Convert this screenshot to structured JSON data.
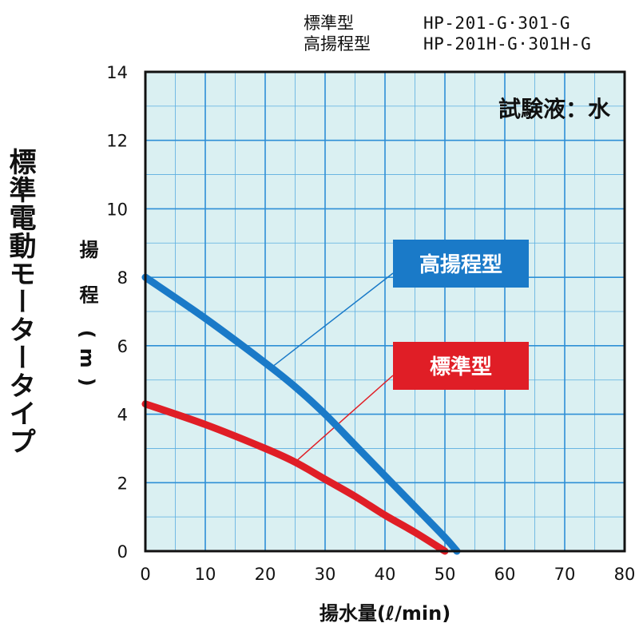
{
  "models": [
    {
      "type": "標準型",
      "codes": "HP-201-G·301-G"
    },
    {
      "type": "高揚程型",
      "codes": "HP-201H-G·301H-G"
    }
  ],
  "side_title": "標準電動モータータイプ",
  "chart_data": {
    "type": "line",
    "title": "",
    "fluid_note": "試験液：水",
    "ylabel": "揚 程 (m)",
    "xlabel": "揚水量(ℓ/min)",
    "xlim": [
      0,
      80
    ],
    "ylim": [
      0,
      14
    ],
    "x_ticks": [
      0,
      10,
      20,
      30,
      40,
      50,
      60,
      70,
      80
    ],
    "y_ticks": [
      0,
      2,
      4,
      6,
      8,
      10,
      12,
      14
    ],
    "x_minor_step": 5,
    "y_minor_step": 1,
    "grid": true,
    "series": [
      {
        "name": "高揚程型",
        "color": "#1a7ac8",
        "x": [
          0,
          10,
          20,
          25,
          30,
          35,
          40,
          45,
          50,
          52
        ],
        "y": [
          8.0,
          6.8,
          5.5,
          4.8,
          4.0,
          3.1,
          2.2,
          1.3,
          0.4,
          0.0
        ],
        "callout_x": 21,
        "legend_pos": "upper-middle"
      },
      {
        "name": "標準型",
        "color": "#e01e26",
        "x": [
          0,
          10,
          20,
          25,
          30,
          35,
          40,
          45,
          50
        ],
        "y": [
          4.3,
          3.7,
          3.0,
          2.6,
          2.1,
          1.6,
          1.05,
          0.55,
          0.0
        ],
        "callout_x": 25,
        "legend_pos": "middle"
      }
    ]
  }
}
